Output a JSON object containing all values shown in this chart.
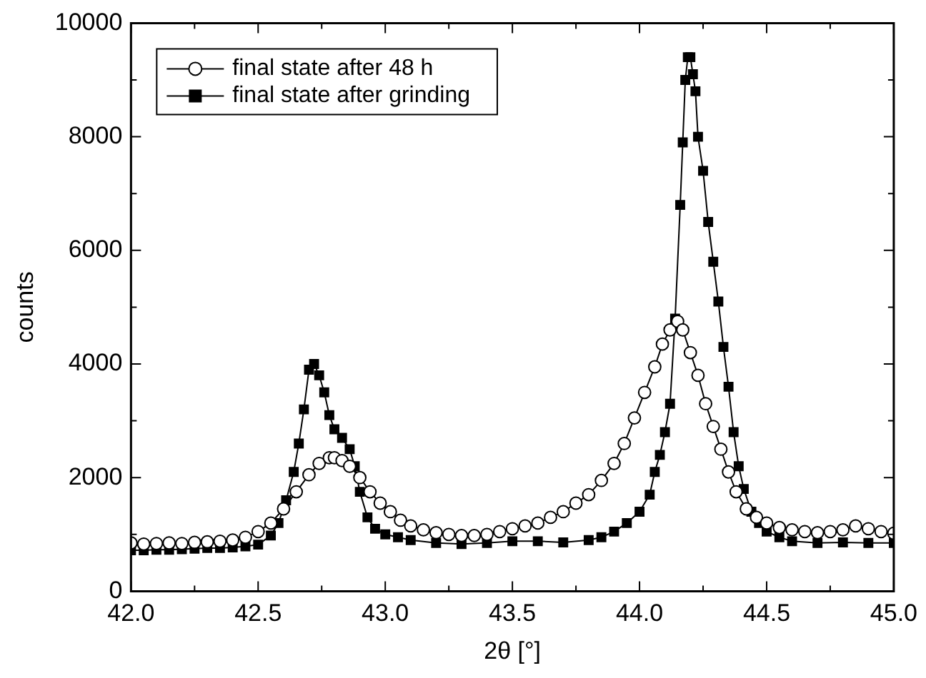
{
  "chart_data": {
    "type": "line",
    "xlabel": "2θ [°]",
    "ylabel": "counts",
    "xlim": [
      42,
      45
    ],
    "ylim": [
      0,
      10000
    ],
    "xticks": [
      {
        "value": 42,
        "label": "42.0"
      },
      {
        "value": 42.25,
        "label": null
      },
      {
        "value": 42.5,
        "label": "42.5"
      },
      {
        "value": 42.75,
        "label": null
      },
      {
        "value": 43,
        "label": "43.0"
      },
      {
        "value": 43.25,
        "label": null
      },
      {
        "value": 43.5,
        "label": "43.5"
      },
      {
        "value": 43.75,
        "label": null
      },
      {
        "value": 44,
        "label": "44.0"
      },
      {
        "value": 44.25,
        "label": null
      },
      {
        "value": 44.5,
        "label": "44.5"
      },
      {
        "value": 44.75,
        "label": null
      },
      {
        "value": 45,
        "label": "45.0"
      }
    ],
    "yticks": [
      0,
      {
        "value": 1000,
        "label": null
      },
      2000,
      {
        "value": 3000,
        "label": null
      },
      4000,
      {
        "value": 5000,
        "label": null
      },
      6000,
      {
        "value": 7000,
        "label": null
      },
      8000,
      {
        "value": 9000,
        "label": null
      },
      10000
    ],
    "grid": false,
    "legend": "top left",
    "line_style": "solid",
    "series": [
      {
        "name": "final state after 48 h",
        "color": "#000000",
        "marker": "circle",
        "x": [
          42.0,
          42.05,
          42.1,
          42.15,
          42.2,
          42.25,
          42.3,
          42.35,
          42.4,
          42.45,
          42.5,
          42.55,
          42.6,
          42.65,
          42.7,
          42.74,
          42.78,
          42.8,
          42.83,
          42.86,
          42.9,
          42.94,
          42.98,
          43.02,
          43.06,
          43.1,
          43.15,
          43.2,
          43.25,
          43.3,
          43.35,
          43.4,
          43.45,
          43.5,
          43.55,
          43.6,
          43.65,
          43.7,
          43.75,
          43.8,
          43.85,
          43.9,
          43.94,
          43.98,
          44.02,
          44.06,
          44.09,
          44.12,
          44.15,
          44.17,
          44.2,
          44.23,
          44.26,
          44.29,
          44.32,
          44.35,
          44.38,
          44.42,
          44.46,
          44.5,
          44.55,
          44.6,
          44.65,
          44.7,
          44.75,
          44.8,
          44.85,
          44.9,
          44.95,
          45.0
        ],
        "values": [
          850,
          830,
          840,
          850,
          840,
          860,
          870,
          880,
          900,
          950,
          1050,
          1200,
          1450,
          1750,
          2050,
          2250,
          2350,
          2350,
          2300,
          2200,
          2000,
          1750,
          1550,
          1400,
          1250,
          1150,
          1080,
          1030,
          1000,
          980,
          980,
          1000,
          1050,
          1100,
          1150,
          1200,
          1300,
          1400,
          1550,
          1700,
          1950,
          2250,
          2600,
          3050,
          3500,
          3950,
          4350,
          4600,
          4750,
          4600,
          4200,
          3800,
          3300,
          2900,
          2500,
          2100,
          1750,
          1450,
          1300,
          1200,
          1120,
          1080,
          1050,
          1030,
          1050,
          1080,
          1150,
          1100,
          1050,
          1020
        ]
      },
      {
        "name": "final state after grinding",
        "color": "#000000",
        "marker": "square",
        "x": [
          42.0,
          42.05,
          42.1,
          42.15,
          42.2,
          42.25,
          42.3,
          42.35,
          42.4,
          42.45,
          42.5,
          42.55,
          42.58,
          42.61,
          42.64,
          42.66,
          42.68,
          42.7,
          42.72,
          42.74,
          42.76,
          42.78,
          42.8,
          42.83,
          42.86,
          42.88,
          42.9,
          42.93,
          42.96,
          43.0,
          43.05,
          43.1,
          43.2,
          43.3,
          43.4,
          43.5,
          43.6,
          43.7,
          43.8,
          43.85,
          43.9,
          43.95,
          44.0,
          44.04,
          44.06,
          44.08,
          44.1,
          44.12,
          44.14,
          44.16,
          44.17,
          44.18,
          44.19,
          44.2,
          44.21,
          44.22,
          44.23,
          44.25,
          44.27,
          44.29,
          44.31,
          44.33,
          44.35,
          44.37,
          44.39,
          44.41,
          44.44,
          44.47,
          44.5,
          44.55,
          44.6,
          44.7,
          44.8,
          44.9,
          45.0
        ],
        "values": [
          720,
          720,
          730,
          730,
          740,
          750,
          760,
          760,
          770,
          790,
          820,
          980,
          1200,
          1600,
          2100,
          2600,
          3200,
          3900,
          4000,
          3800,
          3500,
          3100,
          2850,
          2700,
          2500,
          2200,
          1750,
          1300,
          1100,
          1000,
          950,
          900,
          850,
          830,
          850,
          880,
          880,
          860,
          900,
          950,
          1050,
          1200,
          1400,
          1700,
          2100,
          2400,
          2800,
          3300,
          4800,
          6800,
          7900,
          9000,
          9400,
          9400,
          9100,
          8800,
          8000,
          7400,
          6500,
          5800,
          5100,
          4300,
          3600,
          2800,
          2200,
          1800,
          1400,
          1200,
          1050,
          950,
          880,
          850,
          860,
          850,
          850
        ]
      }
    ]
  }
}
